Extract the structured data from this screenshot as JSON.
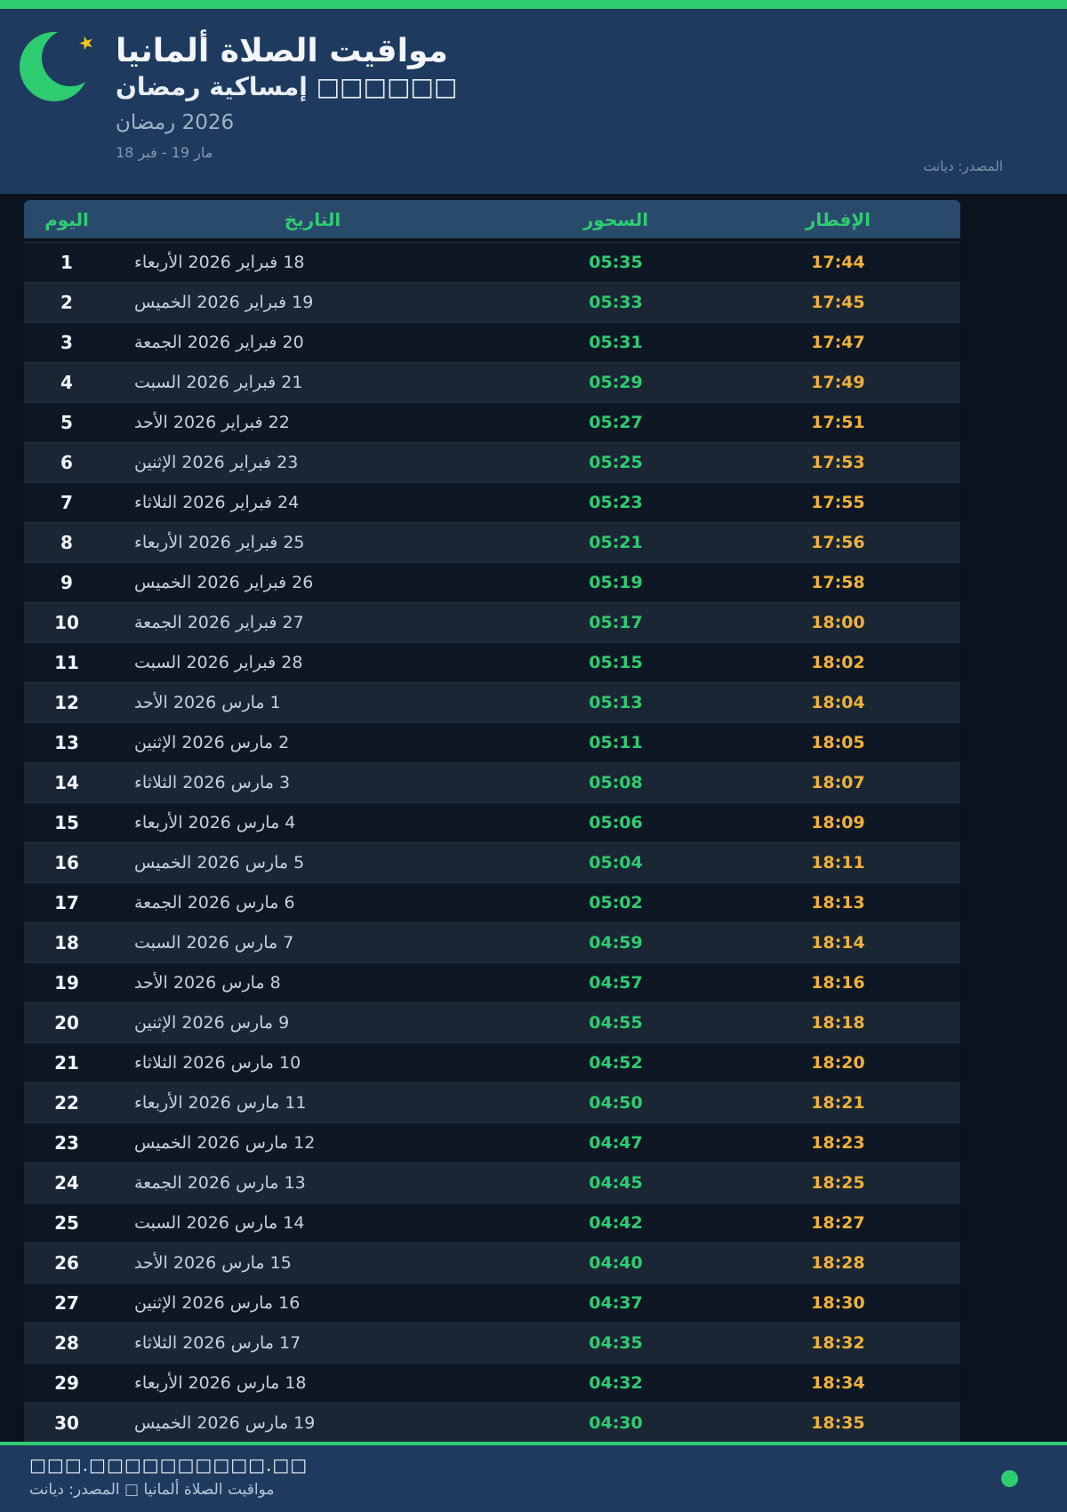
{
  "header": {
    "title": "مواقيت الصلاة ألمانيا",
    "subtitle": "إمساكية رمضان □□□□□□",
    "ramadan_year": "رمضان‎ 2026",
    "date_range": "18 فبر‎ - 19 مار",
    "source": "المصدر: ديانت"
  },
  "icons": {
    "moon": "crescent-moon",
    "star": "star"
  },
  "table": {
    "columns": [
      {
        "key": "day",
        "label": "اليوم"
      },
      {
        "key": "date",
        "label": "التاريخ"
      },
      {
        "key": "suhoor",
        "label": "السحور"
      },
      {
        "key": "iftar",
        "label": "الإفطار"
      }
    ],
    "rows": [
      {
        "day": "1",
        "date": "18 فبراير 2026 الأربعاء",
        "suhoor": "05:35",
        "iftar": "17:44"
      },
      {
        "day": "2",
        "date": "19 فبراير 2026 الخميس",
        "suhoor": "05:33",
        "iftar": "17:45"
      },
      {
        "day": "3",
        "date": "20 فبراير 2026 الجمعة",
        "suhoor": "05:31",
        "iftar": "17:47"
      },
      {
        "day": "4",
        "date": "21 فبراير 2026 السبت",
        "suhoor": "05:29",
        "iftar": "17:49"
      },
      {
        "day": "5",
        "date": "22 فبراير 2026 الأحد",
        "suhoor": "05:27",
        "iftar": "17:51"
      },
      {
        "day": "6",
        "date": "23 فبراير 2026 الإثنين",
        "suhoor": "05:25",
        "iftar": "17:53"
      },
      {
        "day": "7",
        "date": "24 فبراير 2026 الثلاثاء",
        "suhoor": "05:23",
        "iftar": "17:55"
      },
      {
        "day": "8",
        "date": "25 فبراير 2026 الأربعاء",
        "suhoor": "05:21",
        "iftar": "17:56"
      },
      {
        "day": "9",
        "date": "26 فبراير 2026 الخميس",
        "suhoor": "05:19",
        "iftar": "17:58"
      },
      {
        "day": "10",
        "date": "27 فبراير 2026 الجمعة",
        "suhoor": "05:17",
        "iftar": "18:00"
      },
      {
        "day": "11",
        "date": "28 فبراير 2026 السبت",
        "suhoor": "05:15",
        "iftar": "18:02"
      },
      {
        "day": "12",
        "date": "1 مارس 2026 الأحد",
        "suhoor": "05:13",
        "iftar": "18:04"
      },
      {
        "day": "13",
        "date": "2 مارس 2026 الإثنين",
        "suhoor": "05:11",
        "iftar": "18:05"
      },
      {
        "day": "14",
        "date": "3 مارس 2026 الثلاثاء",
        "suhoor": "05:08",
        "iftar": "18:07"
      },
      {
        "day": "15",
        "date": "4 مارس 2026 الأربعاء",
        "suhoor": "05:06",
        "iftar": "18:09"
      },
      {
        "day": "16",
        "date": "5 مارس 2026 الخميس",
        "suhoor": "05:04",
        "iftar": "18:11"
      },
      {
        "day": "17",
        "date": "6 مارس 2026 الجمعة",
        "suhoor": "05:02",
        "iftar": "18:13"
      },
      {
        "day": "18",
        "date": "7 مارس 2026 السبت",
        "suhoor": "04:59",
        "iftar": "18:14"
      },
      {
        "day": "19",
        "date": "8 مارس 2026 الأحد",
        "suhoor": "04:57",
        "iftar": "18:16"
      },
      {
        "day": "20",
        "date": "9 مارس 2026 الإثنين",
        "suhoor": "04:55",
        "iftar": "18:18"
      },
      {
        "day": "21",
        "date": "10 مارس 2026 الثلاثاء",
        "suhoor": "04:52",
        "iftar": "18:20"
      },
      {
        "day": "22",
        "date": "11 مارس 2026 الأربعاء",
        "suhoor": "04:50",
        "iftar": "18:21"
      },
      {
        "day": "23",
        "date": "12 مارس 2026 الخميس",
        "suhoor": "04:47",
        "iftar": "18:23"
      },
      {
        "day": "24",
        "date": "13 مارس 2026 الجمعة",
        "suhoor": "04:45",
        "iftar": "18:25"
      },
      {
        "day": "25",
        "date": "14 مارس 2026 السبت",
        "suhoor": "04:42",
        "iftar": "18:27"
      },
      {
        "day": "26",
        "date": "15 مارس 2026 الأحد",
        "suhoor": "04:40",
        "iftar": "18:28"
      },
      {
        "day": "27",
        "date": "16 مارس 2026 الإثنين",
        "suhoor": "04:37",
        "iftar": "18:30"
      },
      {
        "day": "28",
        "date": "17 مارس 2026 الثلاثاء",
        "suhoor": "04:35",
        "iftar": "18:32"
      },
      {
        "day": "29",
        "date": "18 مارس 2026 الأربعاء",
        "suhoor": "04:32",
        "iftar": "18:34"
      },
      {
        "day": "30",
        "date": "19 مارس 2026 الخميس",
        "suhoor": "04:30",
        "iftar": "18:35"
      }
    ]
  },
  "footer": {
    "url": "□□□.□□□□□□□□□□.□□",
    "credit": "مواقيت الصلاة ألمانيا □ المصدر: ديانت"
  },
  "colors": {
    "accent_green": "#2ecc71",
    "header_navy": "#1e3a5f",
    "page_dark": "#0b131e",
    "row_odd": "#0e1825",
    "row_even": "#1a2634",
    "table_header_bg": "#2a4a6c",
    "iftar_amber": "#f1b13a",
    "star_gold": "#f5c51a"
  }
}
